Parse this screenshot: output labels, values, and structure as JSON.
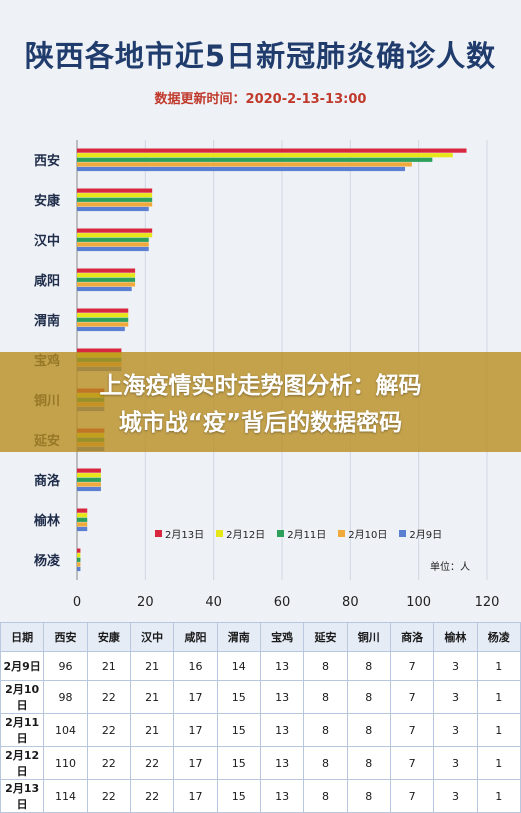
{
  "title": "陕西各地市近5日新冠肺炎确诊人数",
  "subtitle": "数据更新时间：2020-2-13-13:00",
  "banner": {
    "line1": "上海疫情实时走势图分析：解码",
    "line2": "城市战“疫”背后的数据密码"
  },
  "unit_label": "单位：人",
  "chart_data": {
    "type": "bar",
    "orientation": "horizontal",
    "title": "陕西各地市近5日新冠肺炎确诊人数",
    "categories": [
      "西安",
      "安康",
      "汉中",
      "咸阳",
      "渭南",
      "宝鸡",
      "铜川",
      "延安",
      "商洛",
      "榆林",
      "杨凌"
    ],
    "series": [
      {
        "name": "2月13日",
        "color": "#d7263d",
        "values": [
          114,
          22,
          22,
          17,
          15,
          13,
          8,
          8,
          7,
          3,
          1
        ]
      },
      {
        "name": "2月12日",
        "color": "#e6e619",
        "values": [
          110,
          22,
          22,
          17,
          15,
          13,
          8,
          8,
          7,
          3,
          1
        ]
      },
      {
        "name": "2月11日",
        "color": "#2ca05a",
        "values": [
          104,
          22,
          21,
          17,
          15,
          13,
          8,
          8,
          7,
          3,
          1
        ]
      },
      {
        "name": "2月10日",
        "color": "#f0a93b",
        "values": [
          98,
          22,
          21,
          17,
          15,
          13,
          8,
          8,
          7,
          3,
          1
        ]
      },
      {
        "name": "2月9日",
        "color": "#5b7fd1",
        "values": [
          96,
          21,
          21,
          16,
          14,
          13,
          8,
          8,
          7,
          3,
          1
        ]
      }
    ],
    "xlim": [
      0,
      120
    ],
    "xticks": [
      "0",
      "20",
      "40",
      "60",
      "80",
      "100",
      "120"
    ],
    "legend_position": "bottom-right",
    "grid": true
  },
  "table": {
    "headers": [
      "日期",
      "西安",
      "安康",
      "汉中",
      "咸阳",
      "渭南",
      "宝鸡",
      "延安",
      "铜川",
      "商洛",
      "榆林",
      "杨凌"
    ],
    "rows": [
      [
        "2月9日",
        "96",
        "21",
        "21",
        "16",
        "14",
        "13",
        "8",
        "8",
        "7",
        "3",
        "1"
      ],
      [
        "2月10日",
        "98",
        "22",
        "21",
        "17",
        "15",
        "13",
        "8",
        "8",
        "7",
        "3",
        "1"
      ],
      [
        "2月11日",
        "104",
        "22",
        "21",
        "17",
        "15",
        "13",
        "8",
        "8",
        "7",
        "3",
        "1"
      ],
      [
        "2月12日",
        "110",
        "22",
        "22",
        "17",
        "15",
        "13",
        "8",
        "8",
        "7",
        "3",
        "1"
      ],
      [
        "2月13日",
        "114",
        "22",
        "22",
        "17",
        "15",
        "13",
        "8",
        "8",
        "7",
        "3",
        "1"
      ]
    ]
  }
}
